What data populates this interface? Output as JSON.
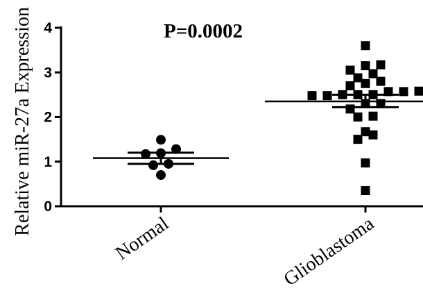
{
  "chart_data": {
    "type": "scatter",
    "title": "",
    "annotation": "P=0.0002",
    "ylabel": "Relative miR-27a Expression",
    "xlabel": "",
    "ylim": [
      0,
      4
    ],
    "yticks": [
      "0",
      "1",
      "2",
      "3",
      "4"
    ],
    "categories": [
      "Normal",
      "Glioblastoma"
    ],
    "series": [
      {
        "category": "Normal",
        "marker": "circle",
        "values": [
          0.7,
          0.92,
          0.95,
          1.17,
          1.19,
          1.28,
          1.49
        ],
        "mean": 1.08,
        "sem_upper": 1.2,
        "sem_lower": 0.95
      },
      {
        "category": "Glioblastoma",
        "marker": "square",
        "values": [
          0.35,
          0.97,
          1.5,
          1.6,
          1.67,
          2.0,
          2.02,
          2.18,
          2.3,
          2.3,
          2.48,
          2.48,
          2.5,
          2.5,
          2.5,
          2.57,
          2.57,
          2.58,
          2.7,
          2.75,
          2.8,
          2.88,
          2.97,
          3.05,
          3.15,
          3.17,
          3.6
        ],
        "mean": 2.35,
        "sem_upper": 2.5,
        "sem_lower": 2.22
      }
    ],
    "colors": {
      "marker": "#000000",
      "axis": "#000000"
    }
  }
}
